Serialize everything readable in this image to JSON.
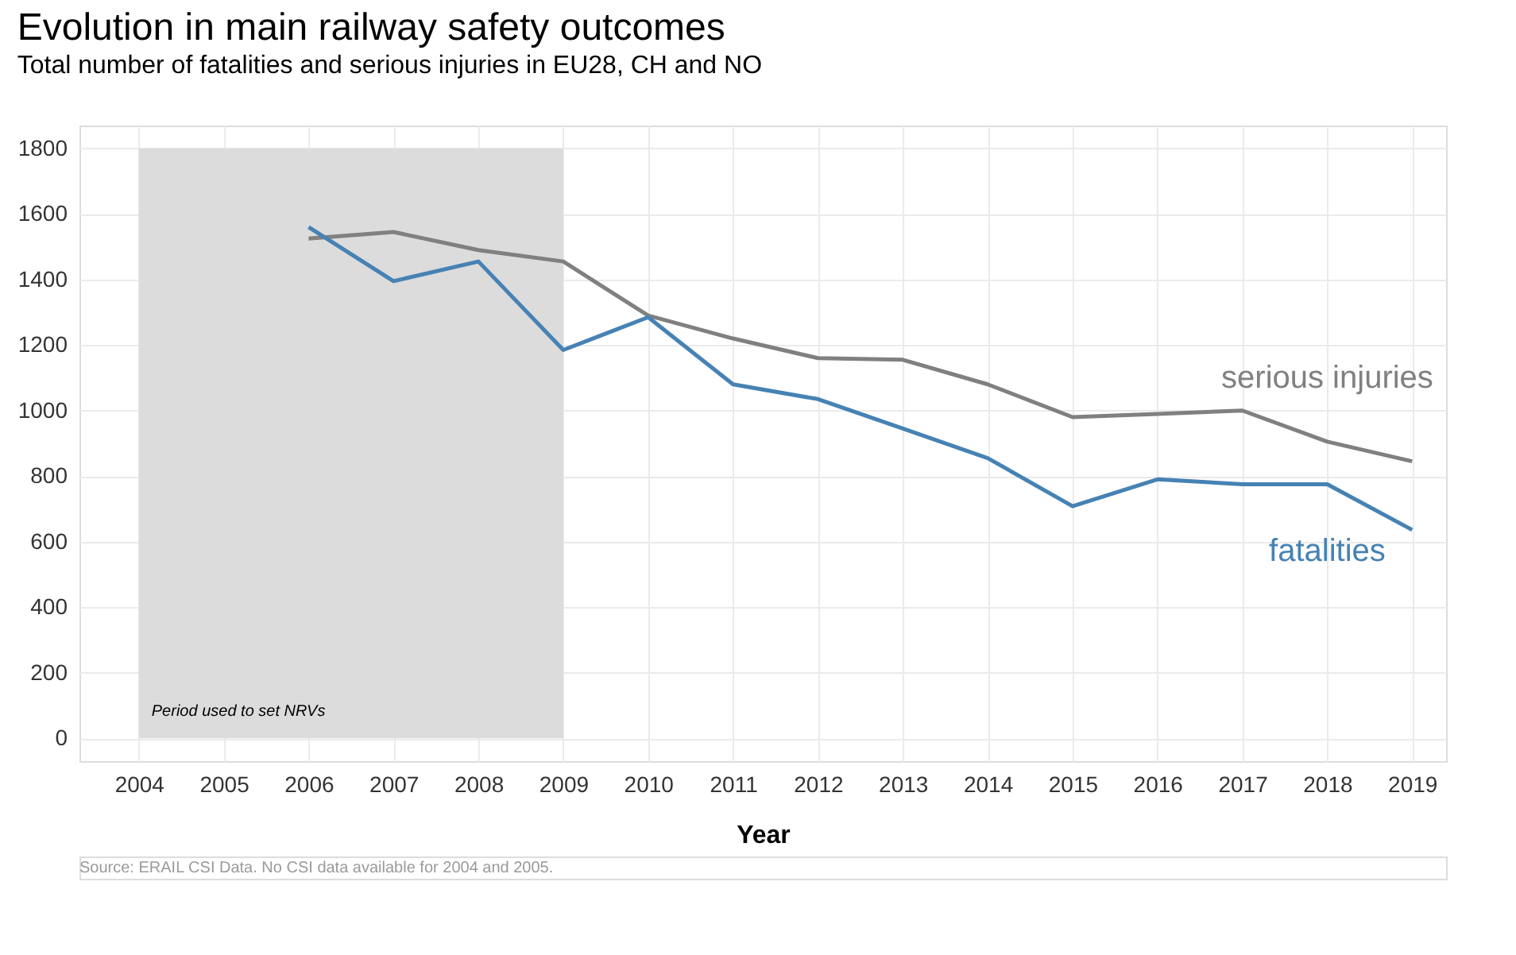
{
  "chart_data": {
    "type": "line",
    "title": "Evolution in main railway safety outcomes",
    "subtitle": "Total number of fatalities and serious injuries in EU28, CH and NO",
    "xlabel": "Year",
    "x": [
      2006,
      2007,
      2008,
      2009,
      2010,
      2011,
      2012,
      2013,
      2014,
      2015,
      2016,
      2017,
      2018,
      2019
    ],
    "series": [
      {
        "name": "serious injuries",
        "color": "#808080",
        "values": [
          1525,
          1545,
          1490,
          1455,
          1290,
          1220,
          1160,
          1155,
          1080,
          980,
          990,
          1000,
          905,
          845
        ]
      },
      {
        "name": "fatalities",
        "color": "#4682b4",
        "values": [
          1560,
          1395,
          1455,
          1185,
          1285,
          1080,
          1035,
          945,
          855,
          708,
          790,
          775,
          775,
          636
        ]
      }
    ],
    "xlim": [
      2003.3,
      2019.4
    ],
    "xticks": [
      2004,
      2005,
      2006,
      2007,
      2008,
      2009,
      2010,
      2011,
      2012,
      2013,
      2014,
      2015,
      2016,
      2017,
      2018,
      2019
    ],
    "ylim": [
      -70,
      1870
    ],
    "yticks": [
      0,
      200,
      400,
      600,
      800,
      1000,
      1200,
      1400,
      1600,
      1800
    ],
    "bands": [
      {
        "axis": "x",
        "from": 2004,
        "to": 2009,
        "label": "Period used to set NRVs",
        "color": "#dcdcdc"
      }
    ],
    "grid": true,
    "legend": false,
    "line_style": "solid",
    "marker": "none",
    "annotations": [
      "Source: ERAIL CSI Data. No CSI data available for 2004 and 2005."
    ]
  }
}
